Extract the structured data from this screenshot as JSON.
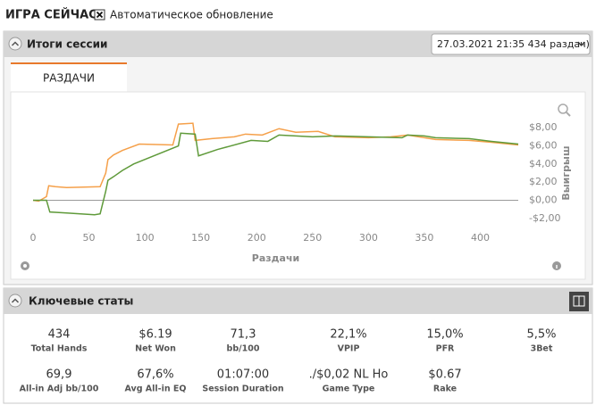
{
  "header": {
    "title": "ИГРА СЕЙЧАС",
    "checkbox_label": "Автоматическое обновление",
    "checkbox_checked": true
  },
  "session": {
    "title": "Итоги сессии",
    "dropdown": "27.03.2021 21:35 434 раздач)",
    "tab": "РАЗДАЧИ"
  },
  "chart_data": {
    "type": "line",
    "x_label": "Раздачи",
    "y_label": "Выигрыш",
    "xlim": [
      0,
      434
    ],
    "ylim": [
      -3.3,
      9.3
    ],
    "xticks": [
      0,
      50,
      100,
      150,
      200,
      250,
      300,
      350,
      400
    ],
    "yticks": [
      {
        "value": -2,
        "label": "-$2,00"
      },
      {
        "value": 0,
        "label": "$0,00"
      },
      {
        "value": 2,
        "label": "$2,00"
      },
      {
        "value": 4,
        "label": "$4,00"
      },
      {
        "value": 6,
        "label": "$6,00"
      },
      {
        "value": 8,
        "label": "$8,00"
      }
    ],
    "zero_line": true,
    "series": [
      {
        "color": "#f5a04a",
        "x": [
          0,
          5,
          12,
          14,
          20,
          30,
          60,
          65,
          67,
          72,
          80,
          95,
          125,
          130,
          143,
          145,
          160,
          180,
          190,
          205,
          220,
          235,
          255,
          270,
          300,
          320,
          335,
          360,
          390,
          410,
          434
        ],
        "values": [
          0,
          -0.1,
          0.4,
          1.6,
          1.5,
          1.4,
          1.5,
          3,
          4.5,
          5,
          5.5,
          6.2,
          6.1,
          8.4,
          8.5,
          6.6,
          6.8,
          7.0,
          7.3,
          7.2,
          7.9,
          7.5,
          7.6,
          7.0,
          6.9,
          7.0,
          7.2,
          6.7,
          6.6,
          6.4,
          6.1
        ]
      },
      {
        "color": "#5f9a3a",
        "x": [
          0,
          12,
          15,
          30,
          55,
          60,
          65,
          67,
          72,
          80,
          90,
          130,
          132,
          145,
          148,
          165,
          195,
          210,
          220,
          250,
          270,
          300,
          330,
          335,
          350,
          360,
          390,
          410,
          434
        ],
        "values": [
          0,
          0,
          -1.3,
          -1.4,
          -1.6,
          -1.5,
          1.0,
          2.2,
          2.6,
          3.3,
          4.0,
          6.0,
          7.4,
          7.3,
          4.9,
          5.6,
          6.6,
          6.5,
          7.2,
          7.0,
          7.1,
          7.0,
          6.9,
          7.2,
          7.1,
          6.9,
          6.8,
          6.5,
          6.2
        ]
      }
    ]
  },
  "stats": {
    "title": "Ключевые статы",
    "items": [
      {
        "value": "434",
        "label": "Total Hands"
      },
      {
        "value": "$6.19",
        "label": "Net Won"
      },
      {
        "value": "71,3",
        "label": "bb/100"
      },
      {
        "value": "22,1%",
        "label": "VPIP"
      },
      {
        "value": "15,0%",
        "label": "PFR"
      },
      {
        "value": "5,5%",
        "label": "3Bet"
      },
      {
        "value": "69,9",
        "label": "All-in Adj bb/100"
      },
      {
        "value": "67,6%",
        "label": "Avg All-in EQ"
      },
      {
        "value": "01:07:00",
        "label": "Session Duration"
      },
      {
        "value": "./$0,02 NL Ho",
        "label": "Game Type"
      },
      {
        "value": "$0.67",
        "label": "Rake"
      }
    ]
  }
}
